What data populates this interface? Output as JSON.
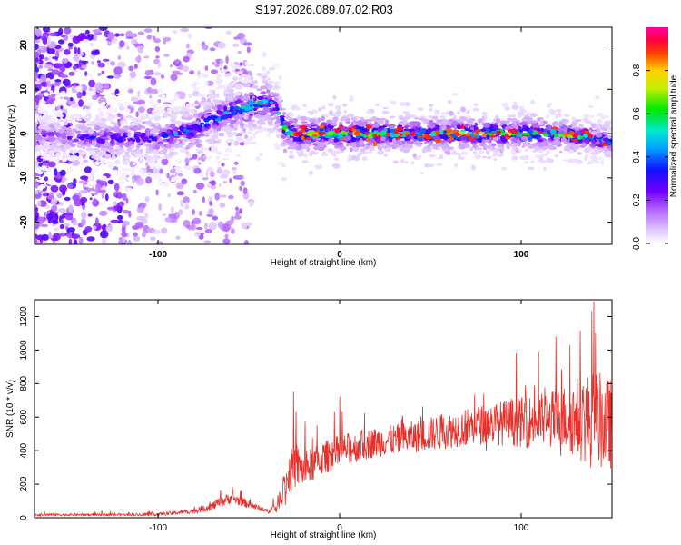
{
  "title": "S197.2026.089.07.02.R03",
  "colors": {
    "snr_line": "#e8302a",
    "frame": "#000000",
    "background": "#ffffff"
  },
  "chart_data": [
    {
      "type": "heatmap",
      "title": "S197.2026.089.07.02.R03",
      "xlabel": "Height of straight line (km)",
      "ylabel": "Frequency (Hz)",
      "xlim": [
        -168,
        150
      ],
      "ylim": [
        -25,
        24
      ],
      "xticks": [
        -100,
        0,
        100
      ],
      "xtick_labels": [
        "-100",
        "0",
        "100"
      ],
      "yticks": [
        -20,
        -10,
        0,
        10,
        20
      ],
      "ytick_labels": [
        "-20",
        "-10",
        "0",
        "10",
        "20"
      ],
      "grid": false,
      "colorbar": {
        "label": "Normalized spectral amplitude",
        "range": [
          0,
          1
        ],
        "ticks": [
          0.0,
          0.2,
          0.4,
          0.6,
          0.8
        ],
        "tick_labels": [
          "0.0",
          "0.2",
          "0.4",
          "0.6",
          "0.8"
        ],
        "colormap": [
          "#ffffff",
          "#e0c8ff",
          "#8a00ff",
          "#1010ff",
          "#00e0ff",
          "#00e800",
          "#ffff00",
          "#ff8000",
          "#ff0000",
          "#ff00a0"
        ]
      },
      "ridge": {
        "description": "dominant frequency band center (Hz) vs height (km)",
        "x": [
          -168,
          -140,
          -120,
          -100,
          -90,
          -80,
          -70,
          -60,
          -50,
          -45,
          -40,
          -35,
          -32,
          -30,
          -25,
          -20,
          0,
          20,
          40,
          60,
          80,
          100,
          120,
          140,
          150
        ],
        "y": [
          0,
          -1,
          -1,
          -1,
          0,
          1,
          3,
          5,
          6,
          7,
          7,
          6,
          3,
          1,
          0,
          0,
          0,
          0,
          0,
          0,
          0,
          0,
          0,
          -1,
          -2
        ],
        "peak_amplitude": [
          0.2,
          0.3,
          0.35,
          0.35,
          0.4,
          0.45,
          0.45,
          0.5,
          0.55,
          0.6,
          0.55,
          0.45,
          0.5,
          0.75,
          0.85,
          0.9,
          0.9,
          0.85,
          0.8,
          0.8,
          0.85,
          0.8,
          0.75,
          0.6,
          0.45
        ]
      }
    },
    {
      "type": "line",
      "xlabel": "Height of straight line (km)",
      "ylabel": "SNR (10 * v/v)",
      "xlim": [
        -168,
        150
      ],
      "ylim": [
        0,
        1300
      ],
      "xticks": [
        -100,
        0,
        100
      ],
      "xtick_labels": [
        "-100",
        "0",
        "100"
      ],
      "yticks": [
        0,
        200,
        400,
        600,
        800,
        1000,
        1200
      ],
      "ytick_labels": [
        "0",
        "200",
        "400",
        "600",
        "800",
        "1000",
        "1200"
      ],
      "grid": false,
      "series": [
        {
          "name": "SNR",
          "envelope_x": [
            -168,
            -140,
            -120,
            -100,
            -80,
            -70,
            -60,
            -50,
            -40,
            -35,
            -30,
            -25,
            -20,
            -10,
            0,
            20,
            40,
            60,
            80,
            100,
            120,
            130,
            140,
            150
          ],
          "mean": [
            18,
            18,
            18,
            20,
            40,
            70,
            120,
            80,
            40,
            60,
            200,
            320,
            280,
            350,
            400,
            450,
            480,
            520,
            560,
            570,
            590,
            600,
            580,
            560
          ],
          "spread": [
            12,
            12,
            12,
            15,
            25,
            45,
            60,
            40,
            20,
            60,
            150,
            250,
            180,
            170,
            160,
            150,
            160,
            180,
            200,
            250,
            300,
            400,
            500,
            450
          ],
          "max": [
            1290
          ]
        }
      ]
    }
  ]
}
